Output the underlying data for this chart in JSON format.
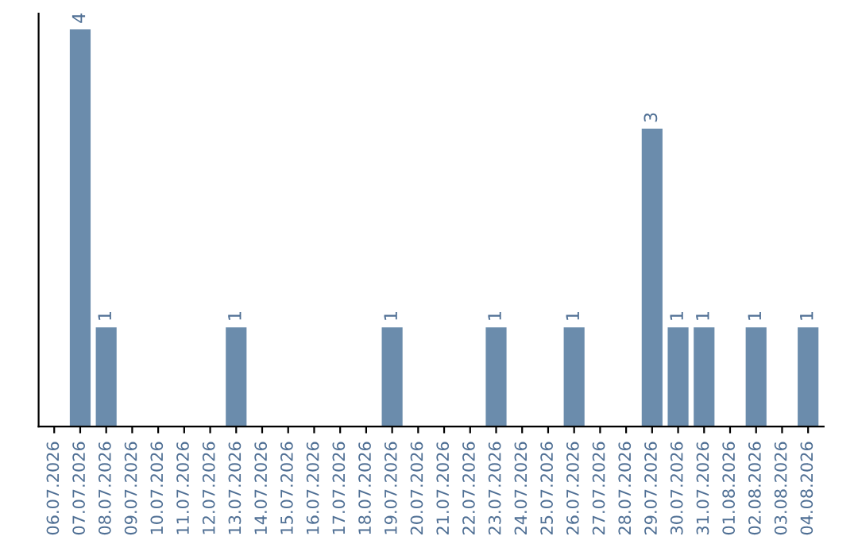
{
  "chart_data": {
    "type": "bar",
    "categories": [
      "06.07.2026",
      "07.07.2026",
      "08.07.2026",
      "09.07.2026",
      "10.07.2026",
      "11.07.2026",
      "12.07.2026",
      "13.07.2026",
      "14.07.2026",
      "15.07.2026",
      "16.07.2026",
      "17.07.2026",
      "18.07.2026",
      "19.07.2026",
      "20.07.2026",
      "21.07.2026",
      "22.07.2026",
      "23.07.2026",
      "24.07.2026",
      "25.07.2026",
      "26.07.2026",
      "27.07.2026",
      "28.07.2026",
      "29.07.2026",
      "30.07.2026",
      "31.07.2026",
      "01.08.2026",
      "02.08.2026",
      "03.08.2026",
      "04.08.2026"
    ],
    "values": [
      0,
      4,
      1,
      0,
      0,
      0,
      0,
      1,
      0,
      0,
      0,
      0,
      0,
      1,
      0,
      0,
      0,
      1,
      0,
      0,
      1,
      0,
      0,
      3,
      1,
      1,
      0,
      1,
      0,
      1
    ],
    "color": "#6b8cac",
    "value_labels": [
      null,
      "4",
      "1",
      null,
      null,
      null,
      null,
      "1",
      null,
      null,
      null,
      null,
      null,
      "1",
      null,
      null,
      null,
      "1",
      null,
      null,
      "1",
      null,
      null,
      "3",
      "1",
      "1",
      null,
      "1",
      null,
      "1"
    ],
    "tick_labels": "x",
    "grid": false,
    "legend": false
  }
}
